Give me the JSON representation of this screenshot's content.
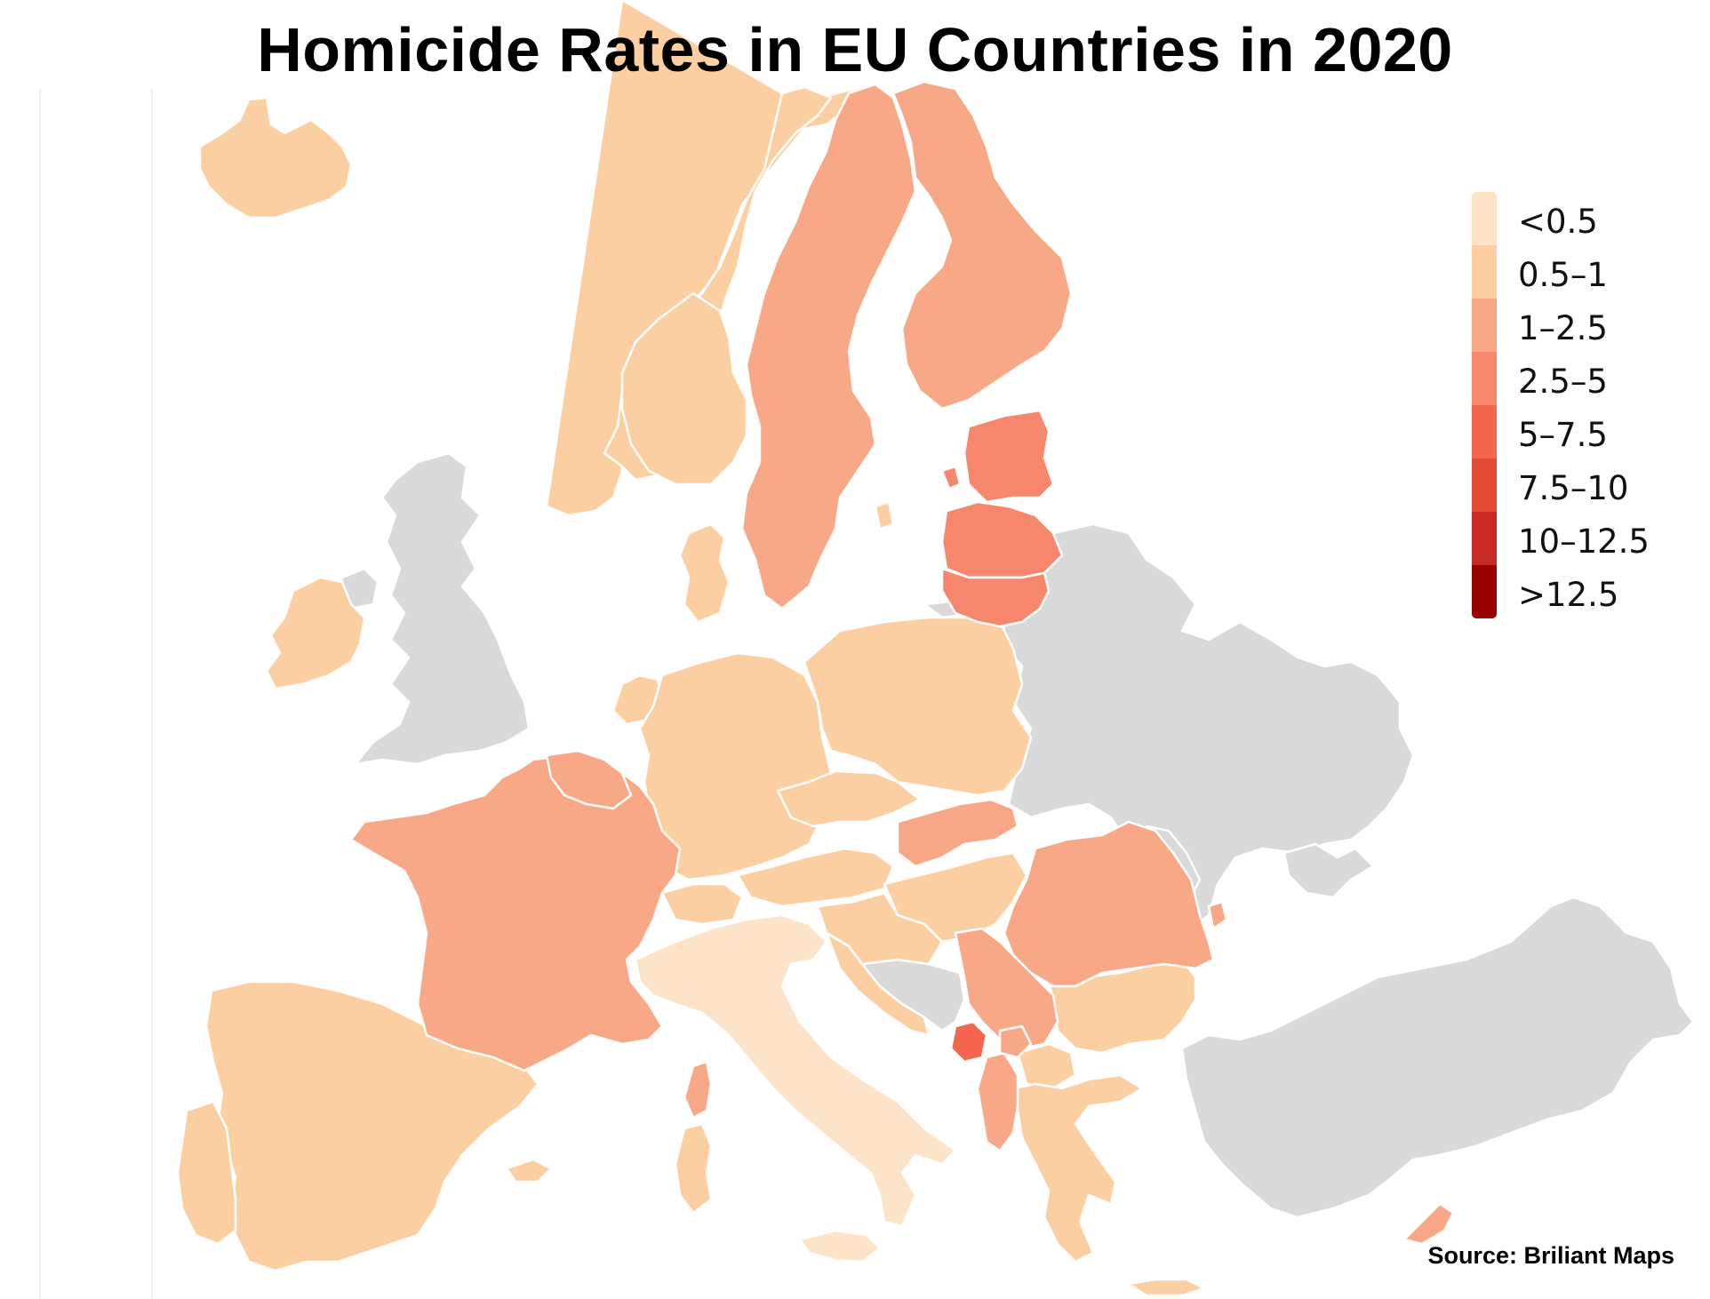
{
  "title": "Homicide Rates in EU Countries in 2020",
  "source": "Source: Briliant Maps",
  "colors": {
    "no_data": "#d9d9d9",
    "lt_0_5": "#fde3c7",
    "c0_5_1": "#fccfa3",
    "c1_2_5": "#f9a887",
    "c2_5_5": "#f7876c",
    "c5_7_5": "#f4674e",
    "c7_5_10": "#e34a33",
    "c10_12_5": "#c72a24",
    "gt_12_5": "#990000"
  },
  "legend": {
    "items": [
      {
        "label": "<0.5",
        "color": "#fde3c7"
      },
      {
        "label": "0.5–1",
        "color": "#fccfa3"
      },
      {
        "label": "1–2.5",
        "color": "#f9a887"
      },
      {
        "label": "2.5–5",
        "color": "#f7876c"
      },
      {
        "label": "5–7.5",
        "color": "#f4674e"
      },
      {
        "label": "7.5–10",
        "color": "#e34a33"
      },
      {
        "label": "10–12.5",
        "color": "#c72a24"
      },
      {
        "label": ">12.5",
        "color": "#990000"
      }
    ]
  }
}
